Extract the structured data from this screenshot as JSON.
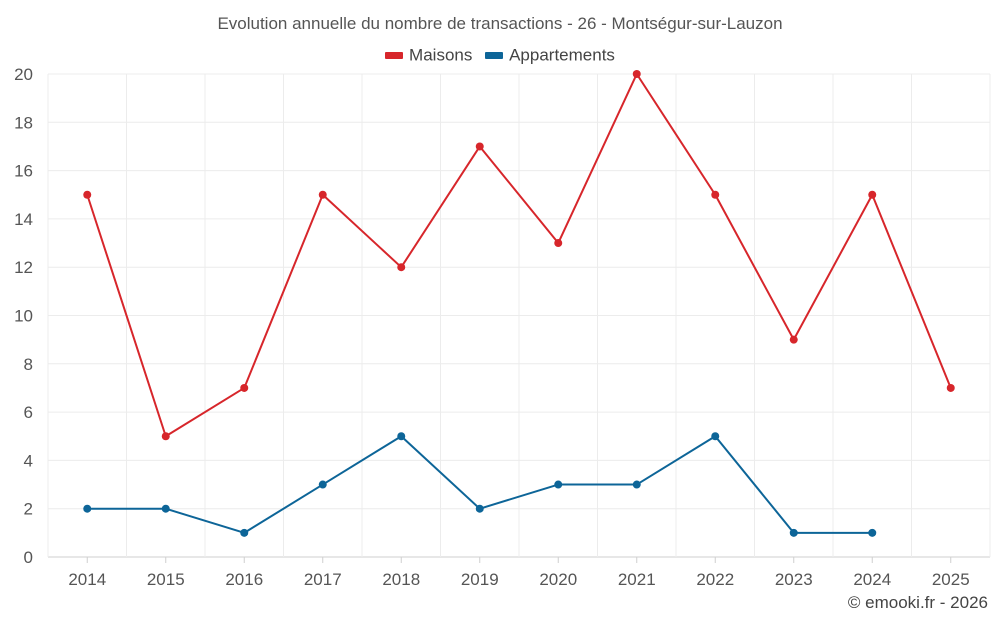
{
  "chart_data": {
    "type": "line",
    "title": "Evolution annuelle du nombre de transactions - 26 - Montségur-sur-Lauzon",
    "categories": [
      "2014",
      "2015",
      "2016",
      "2017",
      "2018",
      "2019",
      "2020",
      "2021",
      "2022",
      "2023",
      "2024",
      "2025"
    ],
    "ylim": [
      0,
      20
    ],
    "yticks": [
      0,
      2,
      4,
      6,
      8,
      10,
      12,
      14,
      16,
      18,
      20
    ],
    "grid": true,
    "legend_position": "top-center",
    "series": [
      {
        "name": "Maisons",
        "color": "#d7262b",
        "values": [
          15,
          5,
          7,
          15,
          12,
          17,
          13,
          20,
          15,
          9,
          15,
          7
        ]
      },
      {
        "name": "Appartements",
        "color": "#0d6598",
        "values": [
          2,
          2,
          1,
          3,
          5,
          2,
          3,
          3,
          5,
          1,
          1,
          null
        ]
      }
    ]
  },
  "footer": {
    "credit": "© emooki.fr - 2026"
  }
}
